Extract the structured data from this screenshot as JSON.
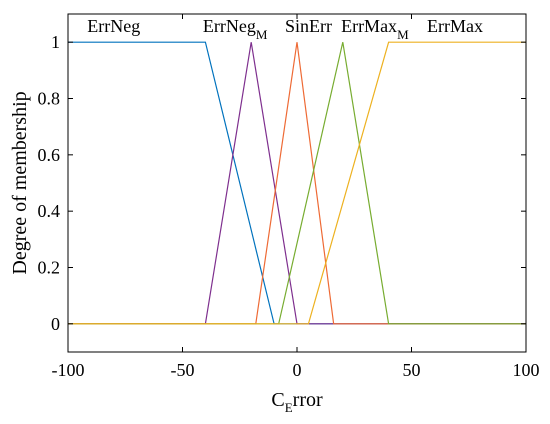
{
  "chart_data": {
    "type": "line",
    "xlabel": {
      "main": "C",
      "sub": "E",
      "rest": "rror"
    },
    "ylabel": "Degree of membership",
    "xlim": [
      -100,
      100
    ],
    "ylim": [
      -0.1,
      1.1
    ],
    "xticks": [
      -100,
      -50,
      0,
      50,
      100
    ],
    "yticks": [
      0,
      0.2,
      0.4,
      0.6,
      0.8,
      1
    ],
    "xtick_labels": [
      "-100",
      "-50",
      "0",
      "50",
      "100"
    ],
    "ytick_labels": [
      "0",
      "0.2",
      "0.4",
      "0.6",
      "0.8",
      "1"
    ],
    "series": [
      {
        "key": "errneg",
        "name": "ErrNeg",
        "name_sub": "",
        "color": "#0072BD",
        "x": [
          -100,
          -40,
          -10,
          100
        ],
        "y": [
          1,
          1,
          0,
          0
        ],
        "label_x": -80
      },
      {
        "key": "errneg-m",
        "name": "ErrNeg",
        "name_sub": "M",
        "color": "#7E2F8E",
        "x": [
          -100,
          -40,
          -20,
          0,
          100
        ],
        "y": [
          0,
          0,
          1,
          0,
          0
        ],
        "label_x": -27
      },
      {
        "key": "sinerr",
        "name": "SinErr",
        "name_sub": "",
        "color": "#EE6A35",
        "x": [
          -100,
          -18,
          0,
          16,
          100
        ],
        "y": [
          0,
          0,
          1,
          0,
          0
        ],
        "label_x": 5
      },
      {
        "key": "errmax-m",
        "name": "ErrMax",
        "name_sub": "M",
        "color": "#77AC30",
        "x": [
          -100,
          -8,
          20,
          40,
          100
        ],
        "y": [
          0,
          0,
          1,
          0,
          0
        ],
        "label_x": 34
      },
      {
        "key": "errmax",
        "name": "ErrMax",
        "name_sub": "",
        "color": "#EDB120",
        "x": [
          -100,
          5,
          40,
          100
        ],
        "y": [
          0,
          0,
          1,
          1
        ],
        "label_x": 69
      }
    ],
    "grid": false,
    "legend": "labels above plot"
  }
}
